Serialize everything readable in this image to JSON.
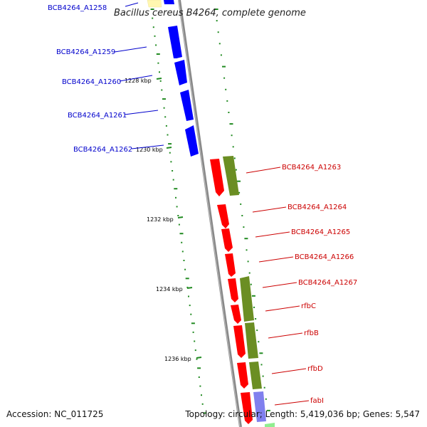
{
  "title": "Bacillus cereus B4264, complete genome",
  "footer": {
    "accession": "Accession: NC_011725",
    "topology": "Topology: circular; Length: 5,419,036 bp; Genes: 5,547"
  },
  "colors": {
    "left_strand_gene": "#0000ff",
    "right_strand_gene": "#ff0000",
    "olive_track": "#6b8e23",
    "lavender_track": "#8080ee",
    "yellow_track": "#fff7b0",
    "backbone": "#808080",
    "tick": "#228b22"
  },
  "ticks": [
    {
      "label": "1228 kbp"
    },
    {
      "label": "1230 kbp"
    },
    {
      "label": "1232 kbp"
    },
    {
      "label": "1234 kbp"
    },
    {
      "label": "1236 kbp"
    }
  ],
  "left_genes": [
    {
      "label": "BCB4264_A1258"
    },
    {
      "label": "BCB4264_A1259"
    },
    {
      "label": "BCB4264_A1260"
    },
    {
      "label": "BCB4264_A1261"
    },
    {
      "label": "BCB4264_A1262"
    }
  ],
  "right_genes": [
    {
      "label": "BCB4264_A1263"
    },
    {
      "label": "BCB4264_A1264"
    },
    {
      "label": "BCB4264_A1265"
    },
    {
      "label": "BCB4264_A1266"
    },
    {
      "label": "BCB4264_A1267"
    },
    {
      "label": "rfbC"
    },
    {
      "label": "rfbB"
    },
    {
      "label": "rfbD"
    },
    {
      "label": "fabI"
    }
  ]
}
